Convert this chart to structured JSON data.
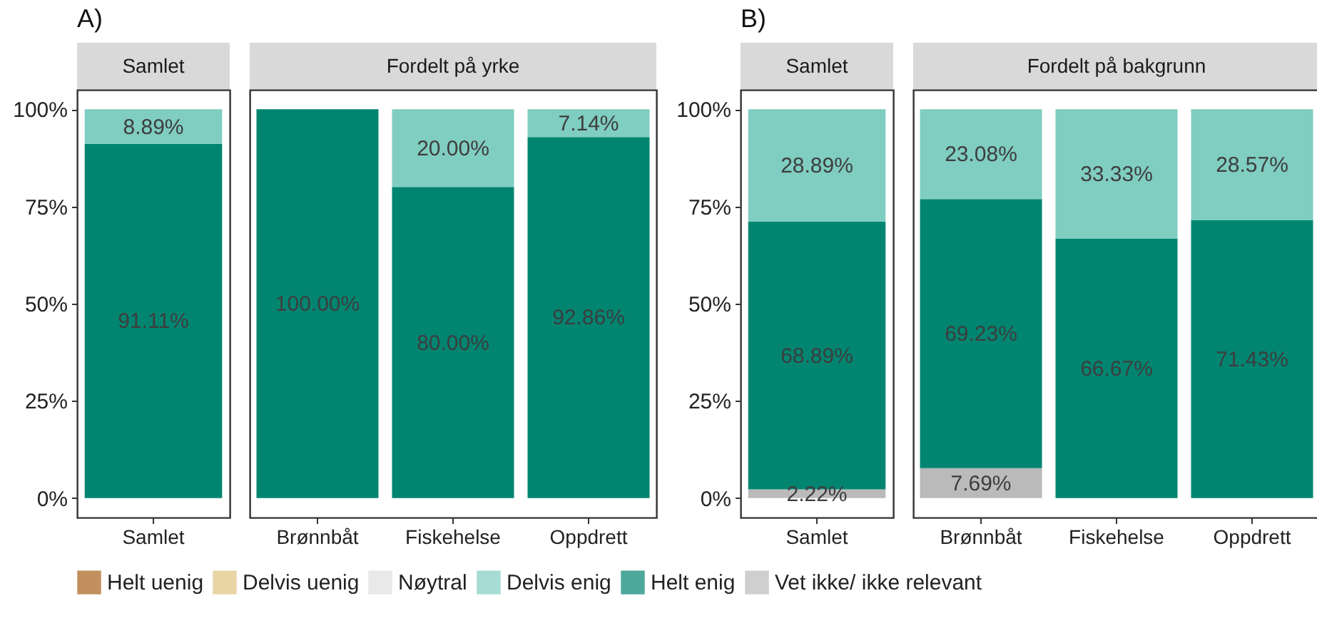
{
  "chart_data": [
    {
      "type": "bar",
      "title": "Samlet",
      "annotations": [
        "A)"
      ],
      "categories": [
        "Samlet"
      ],
      "stacked": true,
      "legend": "bottom",
      "ylim": [
        -5,
        105
      ],
      "yticks": [
        {
          "value": 0,
          "label": "0%"
        },
        {
          "value": 25,
          "label": "25%"
        },
        {
          "value": 50,
          "label": "50%"
        },
        {
          "value": 75,
          "label": "75%"
        },
        {
          "value": 100,
          "label": "100%"
        }
      ],
      "series": [
        {
          "name": "Vet ikke/ ikke relevant",
          "color": "#bababa",
          "values": [
            null
          ],
          "value_labels": [
            null
          ]
        },
        {
          "name": "Helt enig",
          "color": "#018571",
          "values": [
            91.11
          ],
          "value_labels": [
            "91.11%"
          ]
        },
        {
          "name": "Delvis enig",
          "color": "#80cdc1",
          "values": [
            8.89
          ],
          "value_labels": [
            "8.89%"
          ]
        },
        {
          "name": "Nøytral",
          "color": "#e0e0e0",
          "values": [
            null
          ],
          "value_labels": [
            null
          ]
        },
        {
          "name": "Delvis uenig",
          "color": "#dfc27d",
          "values": [
            null
          ],
          "value_labels": [
            null
          ]
        },
        {
          "name": "Helt uenig",
          "color": "#a6611a",
          "values": [
            null
          ],
          "value_labels": [
            null
          ]
        }
      ]
    },
    {
      "type": "bar",
      "title": "Fordelt på yrke",
      "categories": [
        "Brønnbåt",
        "Fiskehelse",
        "Oppdrett"
      ],
      "stacked": true,
      "tick_labels": "x",
      "ylim": [
        -5,
        105
      ],
      "series": [
        {
          "color": "#018571",
          "values": [
            100,
            80,
            92.86
          ],
          "value_labels": [
            "100.00%",
            "80.00%",
            "92.86%"
          ]
        },
        {
          "color": "#80cdc1",
          "values": [
            null,
            20,
            7.14
          ],
          "value_labels": [
            null,
            "20.00%",
            "7.14%"
          ]
        }
      ]
    },
    {
      "type": "bar",
      "title": "Samlet",
      "annotations": [
        "B)"
      ],
      "categories": [
        "Samlet"
      ],
      "stacked": true,
      "ylim": [
        -5,
        105
      ],
      "yticks": [
        {
          "value": 0,
          "label": "0%"
        },
        {
          "value": 25,
          "label": "25%"
        },
        {
          "value": 50,
          "label": "50%"
        },
        {
          "value": 75,
          "label": "75%"
        },
        {
          "value": 100,
          "label": "100%"
        }
      ],
      "series": [
        {
          "color": "#bababa",
          "values": [
            2.22
          ],
          "value_labels": [
            "2.22%"
          ]
        },
        {
          "color": "#018571",
          "values": [
            68.89
          ],
          "value_labels": [
            "68.89%"
          ]
        },
        {
          "color": "#80cdc1",
          "values": [
            28.89
          ],
          "value_labels": [
            "28.89%"
          ]
        }
      ]
    },
    {
      "type": "bar",
      "title": "Fordelt på bakgrunn",
      "categories": [
        "Brønnbåt",
        "Fiskehelse",
        "Oppdrett"
      ],
      "stacked": true,
      "tick_labels": "x",
      "ylim": [
        -5,
        105
      ],
      "series": [
        {
          "color": "#bababa",
          "values": [
            7.69,
            null,
            null
          ],
          "value_labels": [
            "7.69%",
            null,
            null
          ]
        },
        {
          "color": "#018571",
          "values": [
            69.23,
            66.67,
            71.43
          ],
          "value_labels": [
            "69.23%",
            "66.67%",
            "71.43%"
          ]
        },
        {
          "color": "#80cdc1",
          "values": [
            23.08,
            33.33,
            28.57
          ],
          "value_labels": [
            "23.08%",
            "33.33%",
            "28.57%"
          ]
        }
      ]
    }
  ]
}
